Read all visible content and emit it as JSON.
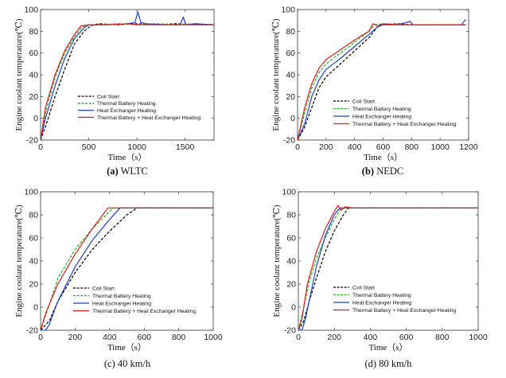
{
  "chart_data": [
    {
      "type": "line",
      "caption_letter": "(a)",
      "caption_text": " WLTC",
      "xlabel": "Time（s）",
      "ylabel": "Engine coolant temperature(℃)",
      "xlim": [
        0,
        1800
      ],
      "ylim": [
        -20,
        100
      ],
      "xticks": [
        "0",
        "500",
        "1000",
        "1500"
      ],
      "xtick_values": [
        0,
        500,
        1000,
        1500
      ],
      "yticks": [
        "-20",
        "0",
        "20",
        "40",
        "60",
        "80",
        "100"
      ],
      "ytick_values": [
        -20,
        0,
        20,
        40,
        60,
        80,
        100
      ],
      "legend_position": "lower-center",
      "series": [
        {
          "name": "Coil Start",
          "color": "#000000",
          "dash": "dash",
          "x": [
            0,
            50,
            150,
            250,
            350,
            450,
            520,
            600,
            800,
            1000,
            1200,
            1400,
            1600,
            1800
          ],
          "y": [
            -20,
            -8,
            20,
            45,
            68,
            80,
            85,
            87,
            86,
            87,
            86,
            87,
            86,
            86
          ]
        },
        {
          "name": "Thermal Battery Heating",
          "color": "#1db31d",
          "dash": "dash",
          "x": [
            0,
            50,
            150,
            250,
            350,
            430,
            500,
            600,
            800,
            1000,
            1200,
            1400,
            1600,
            1800
          ],
          "y": [
            -20,
            5,
            38,
            60,
            75,
            84,
            86,
            86,
            87,
            86,
            87,
            86,
            87,
            86
          ]
        },
        {
          "name": "Heat Exchanger Heating",
          "color": "#1f3fd4",
          "dash": "solid",
          "x": [
            0,
            50,
            150,
            250,
            350,
            450,
            500,
            700,
            900,
            980,
            1010,
            1040,
            1100,
            1300,
            1450,
            1480,
            1510,
            1600,
            1800
          ],
          "y": [
            -20,
            0,
            30,
            55,
            73,
            83,
            86,
            86,
            87,
            88,
            98,
            88,
            87,
            86,
            86,
            93,
            86,
            87,
            86
          ]
        },
        {
          "name": "Thermal Battery + Heat Exchanger Heating",
          "color": "#e01b1b",
          "dash": "solid",
          "x": [
            0,
            50,
            150,
            250,
            350,
            420,
            500,
            700,
            900,
            1000,
            1200,
            1400,
            1600,
            1800
          ],
          "y": [
            -20,
            10,
            40,
            62,
            77,
            85,
            86,
            86,
            87,
            86,
            86,
            86,
            86,
            86
          ]
        }
      ]
    },
    {
      "type": "line",
      "caption_letter": "(b)",
      "caption_text": " NEDC",
      "xlabel": "Time（s）",
      "ylabel": "Engine coolant temperature(℃)",
      "xlim": [
        0,
        1200
      ],
      "ylim": [
        -20,
        100
      ],
      "xticks": [
        "0",
        "200",
        "400",
        "600",
        "800",
        "1000",
        "1200"
      ],
      "xtick_values": [
        0,
        200,
        400,
        600,
        800,
        1000,
        1200
      ],
      "yticks": [
        "-20",
        "0",
        "20",
        "40",
        "60",
        "80",
        "100"
      ],
      "ytick_values": [
        -20,
        0,
        20,
        40,
        60,
        80,
        100
      ],
      "legend_position": "lower-center",
      "series": [
        {
          "name": "Coil Start",
          "color": "#000000",
          "dash": "dash",
          "x": [
            0,
            50,
            100,
            150,
            200,
            300,
            400,
            500,
            560,
            600,
            700,
            800,
            900,
            1000,
            1100,
            1180
          ],
          "y": [
            -20,
            -8,
            10,
            28,
            38,
            50,
            62,
            74,
            84,
            86,
            87,
            86,
            86,
            86,
            86,
            86
          ]
        },
        {
          "name": "Thermal Battery Heating",
          "color": "#1db31d",
          "dash": "dash",
          "x": [
            0,
            50,
            100,
            150,
            200,
            300,
            400,
            500,
            540,
            600,
            700,
            800,
            900,
            1000,
            1100,
            1180
          ],
          "y": [
            -20,
            5,
            28,
            42,
            50,
            60,
            70,
            80,
            86,
            87,
            86,
            86,
            86,
            86,
            86,
            86
          ]
        },
        {
          "name": "Heat Exchanger Heating",
          "color": "#1f3fd4",
          "dash": "solid",
          "x": [
            0,
            50,
            100,
            150,
            200,
            300,
            400,
            500,
            560,
            600,
            700,
            790,
            810,
            900,
            1000,
            1100,
            1150,
            1180
          ],
          "y": [
            -20,
            -5,
            20,
            35,
            45,
            55,
            66,
            77,
            84,
            86,
            86,
            89,
            86,
            86,
            86,
            86,
            86,
            91
          ]
        },
        {
          "name": "Thermal Battery + Heat Exchanger Heating",
          "color": "#e01b1b",
          "dash": "solid",
          "x": [
            0,
            50,
            100,
            150,
            200,
            300,
            400,
            500,
            530,
            560,
            600,
            700,
            800,
            900,
            1000,
            1100,
            1180
          ],
          "y": [
            -20,
            10,
            32,
            46,
            54,
            63,
            72,
            80,
            87,
            85,
            87,
            86,
            86,
            86,
            86,
            86,
            86
          ]
        }
      ]
    },
    {
      "type": "line",
      "caption_letter": "(c)",
      "caption_text": " 40 km/h",
      "caption_bold": false,
      "xlabel": "Time（s）",
      "ylabel": "Engine coolant temperature(℃)",
      "xlim": [
        0,
        1000
      ],
      "ylim": [
        -20,
        100
      ],
      "xticks": [
        "0",
        "200",
        "400",
        "600",
        "800",
        "1000"
      ],
      "xtick_values": [
        0,
        200,
        400,
        600,
        800,
        1000
      ],
      "yticks": [
        "-20",
        "0",
        "20",
        "40",
        "60",
        "80",
        "100"
      ],
      "ytick_values": [
        -20,
        0,
        20,
        40,
        60,
        80,
        100
      ],
      "legend_position": "lower-right",
      "series": [
        {
          "name": "Coil Start",
          "color": "#000000",
          "dash": "dash",
          "x": [
            0,
            50,
            100,
            200,
            300,
            400,
            500,
            560,
            600,
            700,
            800,
            900,
            1000
          ],
          "y": [
            -20,
            -12,
            5,
            30,
            50,
            66,
            80,
            86,
            86,
            86,
            86,
            86,
            86
          ]
        },
        {
          "name": "Thermal Battery Heating",
          "color": "#1db31d",
          "dash": "dash",
          "x": [
            0,
            50,
            100,
            200,
            300,
            400,
            420,
            500,
            600,
            700,
            800,
            900,
            1000
          ],
          "y": [
            -20,
            2,
            25,
            50,
            68,
            83,
            86,
            86,
            86,
            86,
            86,
            86,
            86
          ]
        },
        {
          "name": "Heat Exchanger Heating",
          "color": "#1f3fd4",
          "dash": "solid",
          "x": [
            0,
            30,
            50,
            100,
            200,
            300,
            400,
            460,
            500,
            600,
            700,
            800,
            900,
            1000
          ],
          "y": [
            -20,
            -20,
            -15,
            5,
            35,
            58,
            76,
            86,
            86,
            86,
            86,
            86,
            86,
            86
          ]
        },
        {
          "name": "Thermal Battery + Heat Exchanger Heating",
          "color": "#e01b1b",
          "dash": "solid",
          "x": [
            0,
            30,
            100,
            200,
            300,
            390,
            420,
            500,
            600,
            700,
            800,
            900,
            1000
          ],
          "y": [
            -20,
            -5,
            20,
            46,
            68,
            86,
            86,
            86,
            86,
            86,
            86,
            86,
            86
          ]
        }
      ]
    },
    {
      "type": "line",
      "caption_letter": "(d)",
      "caption_text": " 80 km/h",
      "caption_bold": false,
      "xlabel": "Time（s）",
      "ylabel": "Engine coolant temperature(℃)",
      "xlim": [
        0,
        1000
      ],
      "ylim": [
        -20,
        100
      ],
      "xticks": [
        "0",
        "200",
        "400",
        "600",
        "800",
        "1000"
      ],
      "xtick_values": [
        0,
        200,
        400,
        600,
        800,
        1000
      ],
      "yticks": [
        "-20",
        "0",
        "20",
        "40",
        "60",
        "80",
        "100"
      ],
      "ytick_values": [
        -20,
        0,
        20,
        40,
        60,
        80,
        100
      ],
      "legend_position": "lower-right",
      "series": [
        {
          "name": "Coil Start",
          "color": "#000000",
          "dash": "dash",
          "x": [
            0,
            30,
            60,
            100,
            150,
            200,
            250,
            280,
            300,
            400,
            600,
            800,
            1000
          ],
          "y": [
            -20,
            -12,
            5,
            25,
            48,
            66,
            80,
            86,
            86,
            86,
            86,
            86,
            86
          ]
        },
        {
          "name": "Thermal Battery Heating",
          "color": "#1db31d",
          "dash": "dash",
          "x": [
            0,
            30,
            60,
            100,
            150,
            200,
            240,
            270,
            300,
            400,
            600,
            800,
            1000
          ],
          "y": [
            -20,
            0,
            22,
            42,
            60,
            76,
            86,
            86,
            86,
            86,
            86,
            86,
            86
          ]
        },
        {
          "name": "Heat Exchanger Heating",
          "color": "#1f3fd4",
          "dash": "solid",
          "x": [
            0,
            20,
            40,
            100,
            150,
            200,
            230,
            260,
            300,
            400,
            600,
            800,
            1000
          ],
          "y": [
            -20,
            -20,
            -10,
            35,
            62,
            80,
            86,
            86,
            86,
            86,
            86,
            86,
            86
          ]
        },
        {
          "name": "Thermal Battery + Heat Exchanger Heating",
          "color": "#e01b1b",
          "dash": "solid",
          "x": [
            0,
            20,
            50,
            100,
            150,
            200,
            220,
            240,
            260,
            300,
            400,
            600,
            800,
            1000
          ],
          "y": [
            -20,
            -10,
            20,
            48,
            68,
            83,
            88,
            84,
            87,
            86,
            86,
            86,
            86,
            86
          ]
        }
      ]
    }
  ]
}
